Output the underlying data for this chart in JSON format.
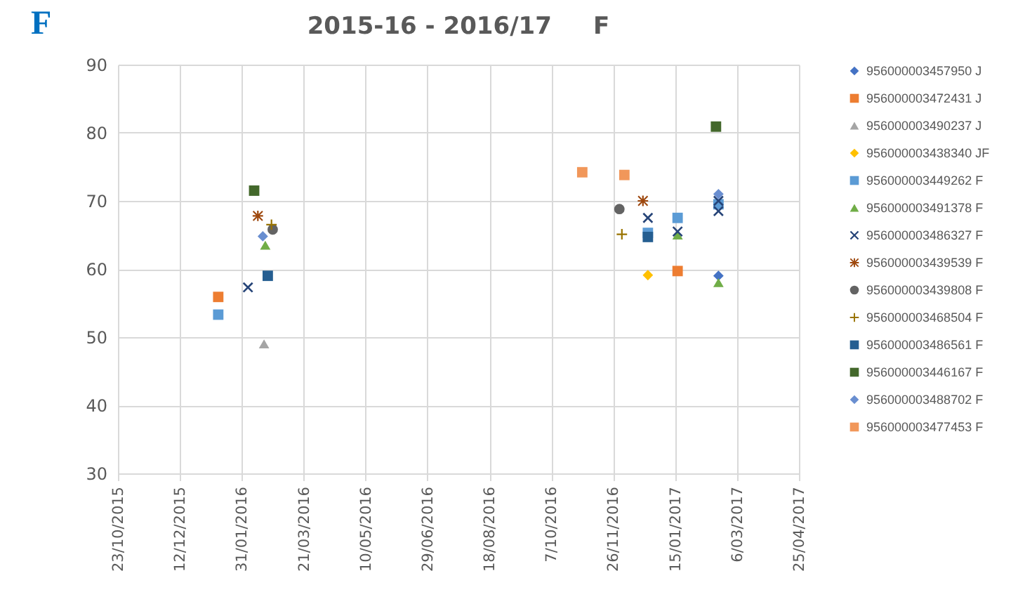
{
  "chart_data": {
    "type": "scatter",
    "title": "2015-16 - 2016/17     F",
    "annotations": [
      "F"
    ],
    "xlim": [
      "2015-10-23",
      "2017-04-25"
    ],
    "xticks": [
      {
        "value": "2015-10-23",
        "label": "23/10/2015"
      },
      {
        "value": "2015-12-12",
        "label": "12/12/2015"
      },
      {
        "value": "2016-01-31",
        "label": "31/01/2016"
      },
      {
        "value": "2016-03-21",
        "label": "21/03/2016"
      },
      {
        "value": "2016-05-10",
        "label": "10/05/2016"
      },
      {
        "value": "2016-06-29",
        "label": "29/06/2016"
      },
      {
        "value": "2016-08-18",
        "label": "18/08/2016"
      },
      {
        "value": "2016-10-07",
        "label": "7/10/2016"
      },
      {
        "value": "2016-11-26",
        "label": "26/11/2016"
      },
      {
        "value": "2017-01-15",
        "label": "15/01/2017"
      },
      {
        "value": "2017-03-06",
        "label": "6/03/2017"
      },
      {
        "value": "2017-04-25",
        "label": "25/04/2017"
      }
    ],
    "ylim": [
      30,
      90
    ],
    "yticks": [
      30,
      40,
      50,
      60,
      70,
      80,
      90
    ],
    "grid": true,
    "legend": "right",
    "series": [
      {
        "name": "956000003457950 J",
        "color": "#4472c4",
        "marker": "diamond",
        "x": [
          "2017-02-19"
        ],
        "values": [
          59
        ]
      },
      {
        "name": "956000003472431 J",
        "color": "#ed7d31",
        "marker": "square",
        "x": [
          "2016-01-12",
          "2017-01-17"
        ],
        "values": [
          55.9,
          59.7
        ]
      },
      {
        "name": "956000003490237 J",
        "color": "#a5a5a5",
        "marker": "triangle",
        "x": [
          "2016-02-18"
        ],
        "values": [
          49
        ]
      },
      {
        "name": "956000003438340 JF",
        "color": "#ffc000",
        "marker": "diamond",
        "x": [
          "2016-12-24"
        ],
        "values": [
          59.1
        ]
      },
      {
        "name": "956000003449262 F",
        "color": "#5b9bd5",
        "marker": "square",
        "x": [
          "2016-01-12",
          "2016-12-24",
          "2017-01-17",
          "2017-02-19"
        ],
        "values": [
          53.3,
          65.3,
          67.5,
          69.5
        ]
      },
      {
        "name": "956000003491378 F",
        "color": "#70ad47",
        "marker": "triangle",
        "x": [
          "2016-02-19",
          "2017-01-17",
          "2017-02-19"
        ],
        "values": [
          63.5,
          65,
          58
        ]
      },
      {
        "name": "956000003486327 F",
        "color": "#264478",
        "marker": "cross",
        "x": [
          "2016-02-05",
          "2016-12-24",
          "2017-01-17",
          "2017-02-19",
          "2017-02-19"
        ],
        "values": [
          57.3,
          67.5,
          65.5,
          70,
          68.5
        ]
      },
      {
        "name": "956000003439539 F",
        "color": "#9e480e",
        "marker": "star",
        "x": [
          "2016-02-13",
          "2016-12-20"
        ],
        "values": [
          67.8,
          70
        ]
      },
      {
        "name": "956000003439808 F",
        "color": "#636363",
        "marker": "circle",
        "x": [
          "2016-02-25",
          "2016-12-01"
        ],
        "values": [
          65.8,
          68.8
        ]
      },
      {
        "name": "956000003468504 F",
        "color": "#997300",
        "marker": "plus",
        "x": [
          "2016-02-24",
          "2016-12-03"
        ],
        "values": [
          66.5,
          65.1
        ]
      },
      {
        "name": "956000003486561 F",
        "color": "#255e91",
        "marker": "square",
        "x": [
          "2016-02-21",
          "2016-12-24"
        ],
        "values": [
          59,
          64.7
        ]
      },
      {
        "name": "956000003446167 F",
        "color": "#43682b",
        "marker": "square",
        "x": [
          "2016-02-10",
          "2017-02-17"
        ],
        "values": [
          71.5,
          80.9
        ]
      },
      {
        "name": "956000003488702 F",
        "color": "#698ed0",
        "marker": "diamond",
        "x": [
          "2016-02-17",
          "2017-02-19"
        ],
        "values": [
          64.8,
          71
        ]
      },
      {
        "name": "956000003477453 F",
        "color": "#f1975a",
        "marker": "square",
        "x": [
          "2016-11-01",
          "2016-12-05"
        ],
        "values": [
          74.2,
          73.8
        ]
      }
    ]
  }
}
